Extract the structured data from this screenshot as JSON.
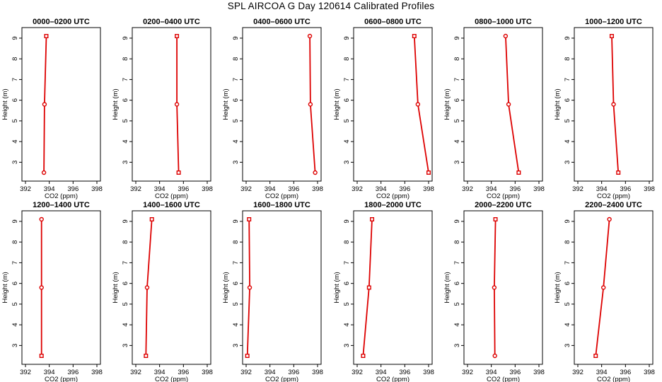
{
  "title": "SPL AIRCOA G  Day 120614  Calibrated Profiles",
  "colors": {
    "series": "#dd0000",
    "axis": "#000000",
    "background": "#ffffff"
  },
  "chart_data": [
    {
      "type": "line",
      "title": "0000–0200 UTC",
      "xlabel": "CO2 (ppm)",
      "ylabel": "Height (m)",
      "xlim": [
        392,
        398
      ],
      "ylim": [
        2.5,
        9.1
      ],
      "xticks": [
        "392",
        "394",
        "396",
        "398"
      ],
      "yticks": [
        "3",
        "4",
        "5",
        "6",
        "7",
        "8",
        "9"
      ],
      "x": [
        393.55,
        393.6,
        393.75
      ],
      "y": [
        2.5,
        5.8,
        9.1
      ],
      "markers": [
        "circle",
        "circle",
        "square"
      ]
    },
    {
      "type": "line",
      "title": "0200–0400 UTC",
      "xlabel": "CO2 (ppm)",
      "ylabel": "Height (m)",
      "xlim": [
        392,
        398
      ],
      "ylim": [
        2.5,
        9.1
      ],
      "xticks": [
        "392",
        "394",
        "396",
        "398"
      ],
      "yticks": [
        "3",
        "4",
        "5",
        "6",
        "7",
        "8",
        "9"
      ],
      "x": [
        395.6,
        395.45,
        395.45
      ],
      "y": [
        2.5,
        5.8,
        9.1
      ],
      "markers": [
        "square",
        "circle",
        "square"
      ]
    },
    {
      "type": "line",
      "title": "0400–0600 UTC",
      "xlabel": "CO2 (ppm)",
      "ylabel": "Height (m)",
      "xlim": [
        392,
        398
      ],
      "ylim": [
        2.5,
        9.1
      ],
      "xticks": [
        "392",
        "394",
        "396",
        "398"
      ],
      "yticks": [
        "3",
        "4",
        "5",
        "6",
        "7",
        "8",
        "9"
      ],
      "x": [
        397.8,
        397.4,
        397.35
      ],
      "y": [
        2.5,
        5.8,
        9.1
      ],
      "markers": [
        "circle",
        "circle",
        "circle"
      ]
    },
    {
      "type": "line",
      "title": "0600–0800 UTC",
      "xlabel": "CO2 (ppm)",
      "ylabel": "Height (m)",
      "xlim": [
        392,
        398
      ],
      "ylim": [
        2.5,
        9.1
      ],
      "xticks": [
        "392",
        "394",
        "396",
        "398"
      ],
      "yticks": [
        "3",
        "4",
        "5",
        "6",
        "7",
        "8",
        "9"
      ],
      "x": [
        398,
        397.1,
        396.8
      ],
      "y": [
        2.5,
        5.8,
        9.1
      ],
      "markers": [
        "square",
        "circle",
        "square"
      ]
    },
    {
      "type": "line",
      "title": "0800–1000 UTC",
      "xlabel": "CO2 (ppm)",
      "ylabel": "Height (m)",
      "xlim": [
        392,
        398
      ],
      "ylim": [
        2.5,
        9.1
      ],
      "xticks": [
        "392",
        "394",
        "396",
        "398"
      ],
      "yticks": [
        "3",
        "4",
        "5",
        "6",
        "7",
        "8",
        "9"
      ],
      "x": [
        396.3,
        395.45,
        395.2
      ],
      "y": [
        2.5,
        5.8,
        9.1
      ],
      "markers": [
        "square",
        "circle",
        "circle"
      ]
    },
    {
      "type": "line",
      "title": "1000–1200 UTC",
      "xlabel": "CO2 (ppm)",
      "ylabel": "Height (m)",
      "xlim": [
        392,
        398
      ],
      "ylim": [
        2.5,
        9.1
      ],
      "xticks": [
        "392",
        "394",
        "396",
        "398"
      ],
      "yticks": [
        "3",
        "4",
        "5",
        "6",
        "7",
        "8",
        "9"
      ],
      "x": [
        395.4,
        395,
        394.85
      ],
      "y": [
        2.5,
        5.8,
        9.1
      ],
      "markers": [
        "square",
        "circle",
        "square"
      ]
    },
    {
      "type": "line",
      "title": "1200–1400 UTC",
      "xlabel": "CO2 (ppm)",
      "ylabel": "Height (m)",
      "xlim": [
        392,
        398
      ],
      "ylim": [
        2.5,
        9.1
      ],
      "xticks": [
        "392",
        "394",
        "396",
        "398"
      ],
      "yticks": [
        "3",
        "4",
        "5",
        "6",
        "7",
        "8",
        "9"
      ],
      "x": [
        393.35,
        393.35,
        393.35
      ],
      "y": [
        2.5,
        5.8,
        9.1
      ],
      "markers": [
        "square",
        "circle",
        "circle"
      ]
    },
    {
      "type": "line",
      "title": "1400–1600 UTC",
      "xlabel": "CO2 (ppm)",
      "ylabel": "Height (m)",
      "xlim": [
        392,
        398
      ],
      "ylim": [
        2.5,
        9.1
      ],
      "xticks": [
        "392",
        "394",
        "396",
        "398"
      ],
      "yticks": [
        "3",
        "4",
        "5",
        "6",
        "7",
        "8",
        "9"
      ],
      "x": [
        392.85,
        392.95,
        393.35
      ],
      "y": [
        2.5,
        5.8,
        9.1
      ],
      "markers": [
        "square",
        "circle",
        "square"
      ]
    },
    {
      "type": "line",
      "title": "1600–1800 UTC",
      "xlabel": "CO2 (ppm)",
      "ylabel": "Height (m)",
      "xlim": [
        392,
        398
      ],
      "ylim": [
        2.5,
        9.1
      ],
      "xticks": [
        "392",
        "394",
        "396",
        "398"
      ],
      "yticks": [
        "3",
        "4",
        "5",
        "6",
        "7",
        "8",
        "9"
      ],
      "x": [
        392.1,
        392.3,
        392.25
      ],
      "y": [
        2.5,
        5.8,
        9.1
      ],
      "markers": [
        "square",
        "circle",
        "square"
      ]
    },
    {
      "type": "line",
      "title": "1800–2000 UTC",
      "xlabel": "CO2 (ppm)",
      "ylabel": "Height (m)",
      "xlim": [
        392,
        398
      ],
      "ylim": [
        2.5,
        9.1
      ],
      "xticks": [
        "392",
        "394",
        "396",
        "398"
      ],
      "yticks": [
        "3",
        "4",
        "5",
        "6",
        "7",
        "8",
        "9"
      ],
      "x": [
        392.5,
        393,
        393.25
      ],
      "y": [
        2.5,
        5.8,
        9.1
      ],
      "markers": [
        "square",
        "square",
        "square"
      ]
    },
    {
      "type": "line",
      "title": "2000–2200 UTC",
      "xlabel": "CO2 (ppm)",
      "ylabel": "Height (m)",
      "xlim": [
        392,
        398
      ],
      "ylim": [
        2.5,
        9.1
      ],
      "xticks": [
        "392",
        "394",
        "396",
        "398"
      ],
      "yticks": [
        "3",
        "4",
        "5",
        "6",
        "7",
        "8",
        "9"
      ],
      "x": [
        394.3,
        394.25,
        394.35
      ],
      "y": [
        2.5,
        5.8,
        9.1
      ],
      "markers": [
        "circle",
        "circle",
        "square"
      ]
    },
    {
      "type": "line",
      "title": "2200–2400 UTC",
      "xlabel": "CO2 (ppm)",
      "ylabel": "Height (m)",
      "xlim": [
        392,
        398
      ],
      "ylim": [
        2.5,
        9.1
      ],
      "xticks": [
        "392",
        "394",
        "396",
        "398"
      ],
      "yticks": [
        "3",
        "4",
        "5",
        "6",
        "7",
        "8",
        "9"
      ],
      "x": [
        393.5,
        394.15,
        394.65
      ],
      "y": [
        2.5,
        5.8,
        9.1
      ],
      "markers": [
        "square",
        "circle",
        "circle"
      ]
    }
  ]
}
